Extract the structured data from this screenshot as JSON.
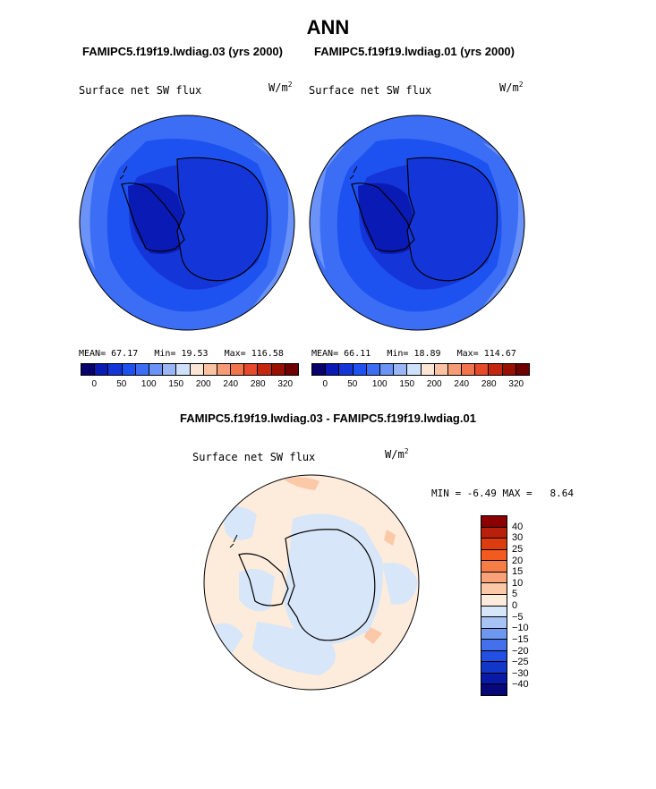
{
  "title": "ANN",
  "panels": [
    {
      "case_label": "FAMIPC5.f19f19.lwdiag.03 (yrs 2000)",
      "variable": "Surface net SW flux",
      "units_base": "W/m",
      "units_exp": "2",
      "mean_label": "MEAN=",
      "mean_value": "67.17",
      "min_label": "Min=",
      "min_value": "19.53",
      "max_label": "Max=",
      "max_value": "116.58"
    },
    {
      "case_label": "FAMIPC5.f19f19.lwdiag.01 (yrs 2000)",
      "variable": "Surface net SW flux",
      "units_base": "W/m",
      "units_exp": "2",
      "mean_label": "MEAN=",
      "mean_value": "66.11",
      "min_label": "Min=",
      "min_value": "18.89",
      "max_label": "Max=",
      "max_value": "114.67"
    }
  ],
  "abs_colorbar": {
    "colors": [
      "#08006b",
      "#0a1ab4",
      "#1436d8",
      "#1e52f0",
      "#3c6ef5",
      "#6a92f7",
      "#9ab6f5",
      "#cfe1fa",
      "#fbe6d6",
      "#f8c2a3",
      "#f59c76",
      "#f2744d",
      "#e64a2a",
      "#c4260f",
      "#9a1000",
      "#6e0000"
    ],
    "ticks": [
      "0",
      "50",
      "100",
      "150",
      "200",
      "240",
      "280",
      "320"
    ]
  },
  "diff": {
    "title": "FAMIPC5.f19f19.lwdiag.03 - FAMIPC5.f19f19.lwdiag.01",
    "variable": "Surface net SW flux",
    "units_base": "W/m",
    "units_exp": "2",
    "min_label": "MIN =",
    "min_value": "-6.49",
    "max_label": "MAX =",
    "max_value": "8.64"
  },
  "diff_colorbar": {
    "colors": [
      "#8b0000",
      "#b8200a",
      "#dd3b10",
      "#f25a20",
      "#f77c45",
      "#f9a27a",
      "#fbc8a8",
      "#fdecdc",
      "#d7e6f8",
      "#a6c3f4",
      "#6e97f0",
      "#4470ec",
      "#2350e4",
      "#1236c8",
      "#0a1aa8",
      "#06087a"
    ],
    "ticks": [
      "40",
      "30",
      "25",
      "20",
      "15",
      "10",
      "5",
      "0",
      "−5",
      "−10",
      "−15",
      "−20",
      "−25",
      "−30",
      "−40"
    ]
  }
}
